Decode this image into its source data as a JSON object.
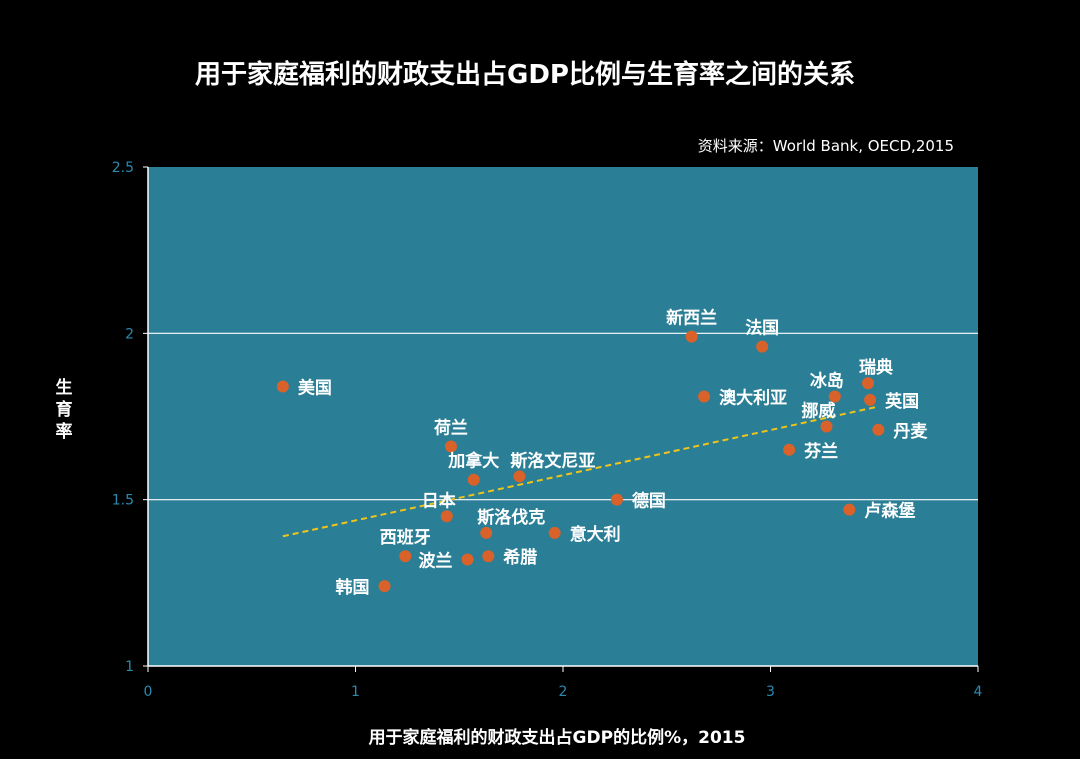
{
  "chart_data": {
    "type": "scatter",
    "title": "用于家庭福利的财政支出占GDP比例与生育率之间的关系",
    "source": "资料来源：World Bank,  OECD,2015",
    "xlabel": "用于家庭福利的财政支出占GDP的比例%，2015",
    "ylabel": "生育率",
    "xlim": [
      0,
      4
    ],
    "ylim": [
      1,
      2.5
    ],
    "x_ticks": [
      "0",
      "1",
      "2",
      "3",
      "4"
    ],
    "y_ticks": [
      "1",
      "1.5",
      "2",
      "2.5"
    ],
    "grid": "horizontal",
    "trendline": {
      "style": "dashed",
      "x": [
        0.65,
        3.52
      ],
      "y": [
        1.39,
        1.78
      ]
    },
    "colors": {
      "background": "#000000",
      "plot_area": "#2a7e95",
      "point": "#d9622b",
      "trendline": "#f0c419",
      "tick_label": "#2a8ab0"
    },
    "points": [
      {
        "name": "美国",
        "x": 0.65,
        "y": 1.84,
        "pos": "right"
      },
      {
        "name": "新西兰",
        "x": 2.62,
        "y": 1.99,
        "pos": "above"
      },
      {
        "name": "法国",
        "x": 2.96,
        "y": 1.96,
        "pos": "above"
      },
      {
        "name": "瑞典",
        "x": 3.47,
        "y": 1.85,
        "pos": "above-right"
      },
      {
        "name": "冰岛",
        "x": 3.31,
        "y": 1.81,
        "pos": "above-left"
      },
      {
        "name": "英国",
        "x": 3.48,
        "y": 1.8,
        "pos": "right"
      },
      {
        "name": "澳大利亚",
        "x": 2.68,
        "y": 1.81,
        "pos": "right"
      },
      {
        "name": "挪威",
        "x": 3.27,
        "y": 1.72,
        "pos": "above-left"
      },
      {
        "name": "丹麦",
        "x": 3.52,
        "y": 1.71,
        "pos": "right"
      },
      {
        "name": "芬兰",
        "x": 3.09,
        "y": 1.65,
        "pos": "right"
      },
      {
        "name": "荷兰",
        "x": 1.46,
        "y": 1.66,
        "pos": "above"
      },
      {
        "name": "加拿大",
        "x": 1.57,
        "y": 1.56,
        "pos": "above"
      },
      {
        "name": "斯洛文尼亚",
        "x": 1.79,
        "y": 1.57,
        "pos": "above-right"
      },
      {
        "name": "德国",
        "x": 2.26,
        "y": 1.5,
        "pos": "right"
      },
      {
        "name": "日本",
        "x": 1.44,
        "y": 1.45,
        "pos": "above-left"
      },
      {
        "name": "斯洛伐克",
        "x": 1.63,
        "y": 1.4,
        "pos": "above-right"
      },
      {
        "name": "意大利",
        "x": 1.96,
        "y": 1.4,
        "pos": "right"
      },
      {
        "name": "卢森堡",
        "x": 3.38,
        "y": 1.47,
        "pos": "right"
      },
      {
        "name": "西班牙",
        "x": 1.24,
        "y": 1.33,
        "pos": "above"
      },
      {
        "name": "波兰",
        "x": 1.54,
        "y": 1.32,
        "pos": "left"
      },
      {
        "name": "希腊",
        "x": 1.64,
        "y": 1.33,
        "pos": "right"
      },
      {
        "name": "韩国",
        "x": 1.14,
        "y": 1.24,
        "pos": "left"
      }
    ]
  }
}
